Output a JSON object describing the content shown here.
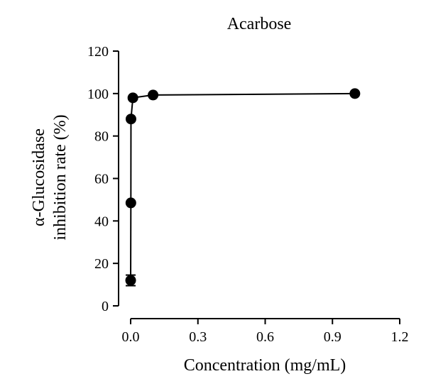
{
  "chart_data": {
    "type": "scatter",
    "title": "Acarbose",
    "xlabel": "Concentration (mg/mL)",
    "ylabel_lines": [
      "α-Glucosidase",
      "inhibition rate (%)"
    ],
    "xlim": [
      0,
      1.2
    ],
    "ylim": [
      0,
      120
    ],
    "xticks": [
      0.0,
      0.3,
      0.6,
      0.9,
      1.2
    ],
    "xtick_labels": [
      "0.0",
      "0.3",
      "0.6",
      "0.9",
      "1.2"
    ],
    "yticks": [
      0,
      20,
      40,
      60,
      80,
      100,
      120
    ],
    "ytick_labels": [
      "0",
      "20",
      "40",
      "60",
      "80",
      "100",
      "120"
    ],
    "grid": false,
    "series": [
      {
        "connected": true,
        "color": "#000000",
        "x": [
          0.0001,
          0.001,
          0.0015,
          0.01,
          0.1,
          1.0
        ],
        "y": [
          12,
          48.5,
          88,
          98,
          99.3,
          100
        ],
        "yerr": [
          2.5,
          0,
          0,
          0,
          0,
          0
        ]
      }
    ]
  }
}
